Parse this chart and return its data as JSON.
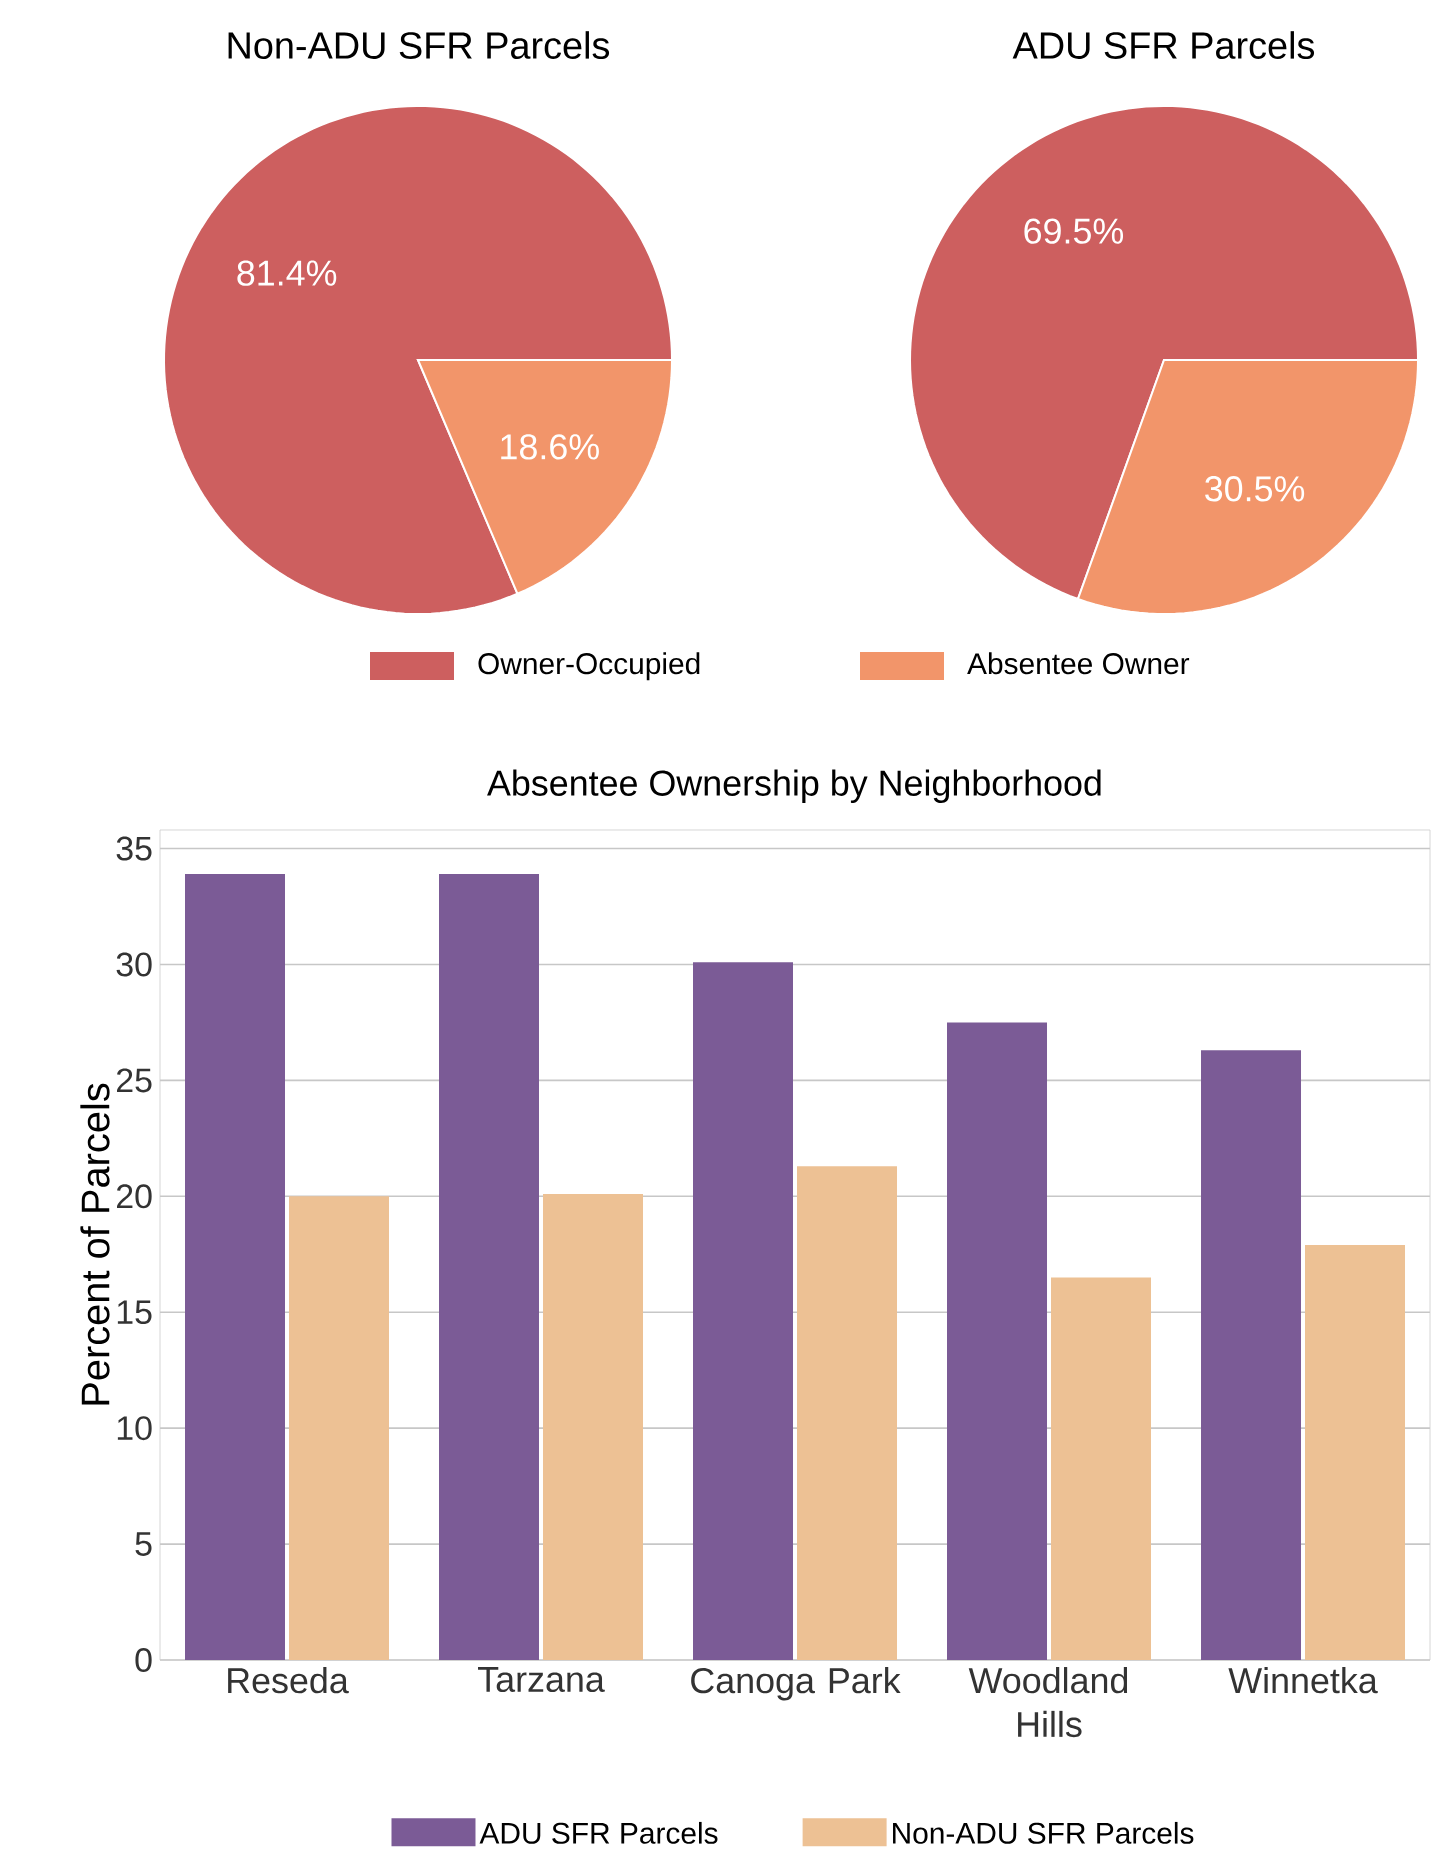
{
  "chart_data": [
    {
      "type": "pie",
      "title": "Non-ADU SFR Parcels",
      "categories": [
        "Owner-Occupied",
        "Absentee Owner"
      ],
      "values": [
        81.4,
        18.6
      ],
      "colors": [
        "#cd5f5f",
        "#f2956a"
      ],
      "value_labels": [
        "81.4%",
        "18.6%"
      ],
      "legend": "bottom"
    },
    {
      "type": "pie",
      "title": "ADU SFR Parcels",
      "values": [
        69.5,
        30.5
      ],
      "colors": [
        "#cd5f5f",
        "#f2956a"
      ],
      "value_labels": [
        "69.5%",
        "30.5%"
      ]
    },
    {
      "type": "bar",
      "title": "Absentee Ownership by Neighborhood",
      "ylabel": "Percent of Parcels",
      "categories": [
        "Reseda",
        "Tarzana",
        "Canoga Park",
        "Woodland Hills",
        "Winnetka"
      ],
      "series": [
        {
          "name": "ADU SFR Parcels",
          "color": "#7b5b96",
          "values": [
            33.9,
            33.9,
            30.1,
            27.5,
            26.3
          ]
        },
        {
          "name": "Non-ADU SFR Parcels",
          "color": "#edc194",
          "values": [
            20.0,
            20.1,
            21.3,
            16.5,
            17.9
          ]
        }
      ],
      "ylim": [
        0,
        35.8
      ],
      "yticks": [
        0,
        5,
        10,
        15,
        20,
        25,
        30,
        35
      ],
      "grid": "y",
      "legend": "bottom"
    }
  ]
}
